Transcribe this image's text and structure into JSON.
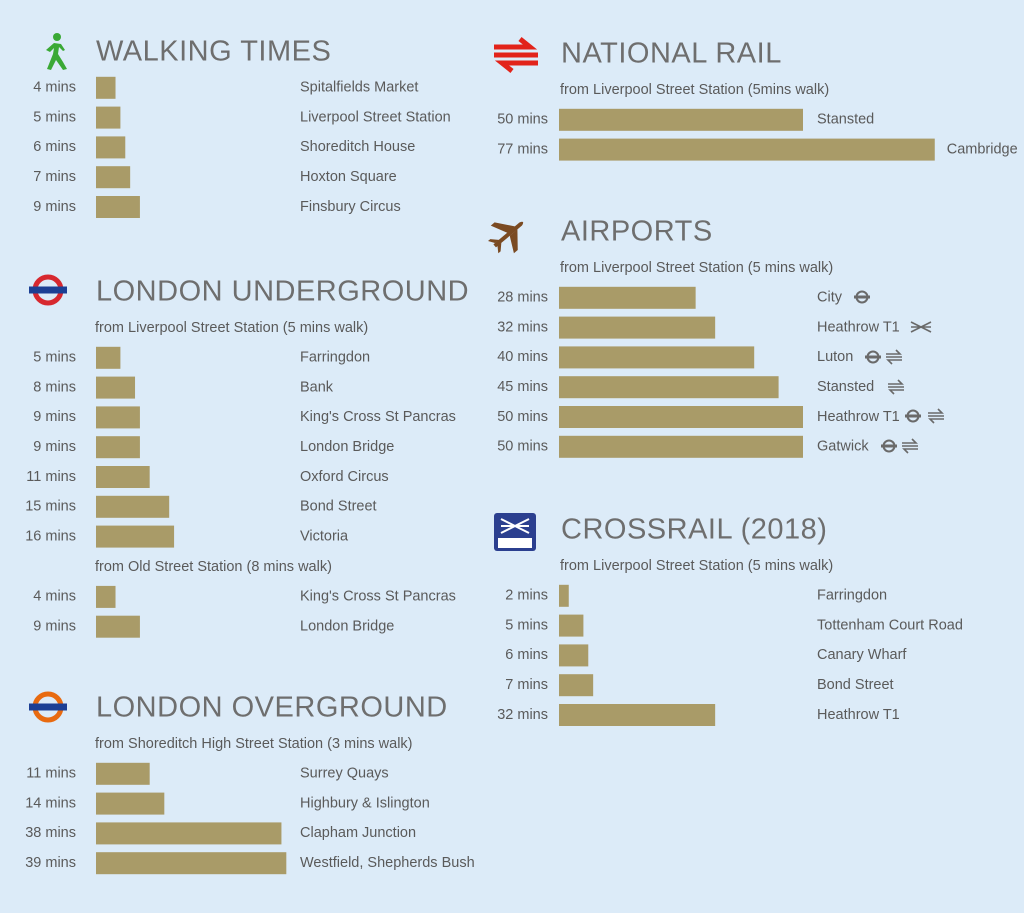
{
  "chart_data": [
    {
      "type": "bar",
      "title": "WALKING TIMES",
      "color": "#a99b68",
      "groups": [
        {
          "categories": [
            "Spitalfields Market",
            "Liverpool Street Station",
            "Shoreditch House",
            "Hoxton Square",
            "Finsbury Circus"
          ],
          "values": [
            4,
            5,
            6,
            7,
            9
          ],
          "value_labels": [
            "4 mins",
            "5 mins",
            "6 mins",
            "7 mins",
            "9 mins"
          ]
        }
      ]
    },
    {
      "type": "bar",
      "title": "LONDON UNDERGROUND",
      "color": "#a99b68",
      "groups": [
        {
          "subtitle": "from Liverpool Street Station (5 mins walk)",
          "categories": [
            "Farringdon",
            "Bank",
            "King's Cross St Pancras",
            "London Bridge",
            "Oxford Circus",
            "Bond Street",
            "Victoria"
          ],
          "values": [
            5,
            8,
            9,
            9,
            11,
            15,
            16
          ],
          "value_labels": [
            "5 mins",
            "8 mins",
            "9 mins",
            "9 mins",
            "11 mins",
            "15 mins",
            "16 mins"
          ]
        },
        {
          "subtitle": "from Old Street Station (8 mins walk)",
          "categories": [
            "King's Cross St Pancras",
            "London Bridge"
          ],
          "values": [
            4,
            9
          ],
          "value_labels": [
            "4 mins",
            "9 mins"
          ]
        }
      ]
    },
    {
      "type": "bar",
      "title": "LONDON OVERGROUND",
      "color": "#a99b68",
      "groups": [
        {
          "subtitle": "from Shoreditch High Street Station (3 mins walk)",
          "categories": [
            "Surrey Quays",
            "Highbury & Islington",
            "Clapham Junction",
            "Westfield, Shepherds Bush"
          ],
          "values": [
            11,
            14,
            38,
            39
          ],
          "value_labels": [
            "11 mins",
            "14 mins",
            "38 mins",
            "39 mins"
          ]
        }
      ]
    },
    {
      "type": "bar",
      "title": "NATIONAL RAIL",
      "color": "#a99b68",
      "groups": [
        {
          "subtitle": "from Liverpool Street Station (5mins walk)",
          "categories": [
            "Stansted",
            "Cambridge"
          ],
          "values": [
            50,
            77
          ],
          "value_labels": [
            "50 mins",
            "77 mins"
          ]
        }
      ]
    },
    {
      "type": "bar",
      "title": "AIRPORTS",
      "color": "#a99b68",
      "groups": [
        {
          "subtitle": "from Liverpool Street Station (5 mins walk)",
          "categories": [
            "City",
            "Heathrow T1",
            "Luton",
            "Stansted",
            "Heathrow T1",
            "Gatwick"
          ],
          "values": [
            28,
            32,
            40,
            45,
            50,
            50
          ],
          "value_labels": [
            "28 mins",
            "32 mins",
            "40 mins",
            "45 mins",
            "50 mins",
            "50 mins"
          ]
        }
      ]
    },
    {
      "type": "bar",
      "title": "CROSSRAIL (2018)",
      "color": "#a99b68",
      "groups": [
        {
          "subtitle": "from Liverpool Street Station (5 mins walk)",
          "categories": [
            "Farringdon",
            "Tottenham Court Road",
            "Canary Wharf",
            "Bond Street",
            "Heathrow T1"
          ],
          "values": [
            2,
            5,
            6,
            7,
            32
          ],
          "value_labels": [
            "2 mins",
            "5 mins",
            "6 mins",
            "7 mins",
            "32 mins"
          ]
        }
      ]
    }
  ]
}
